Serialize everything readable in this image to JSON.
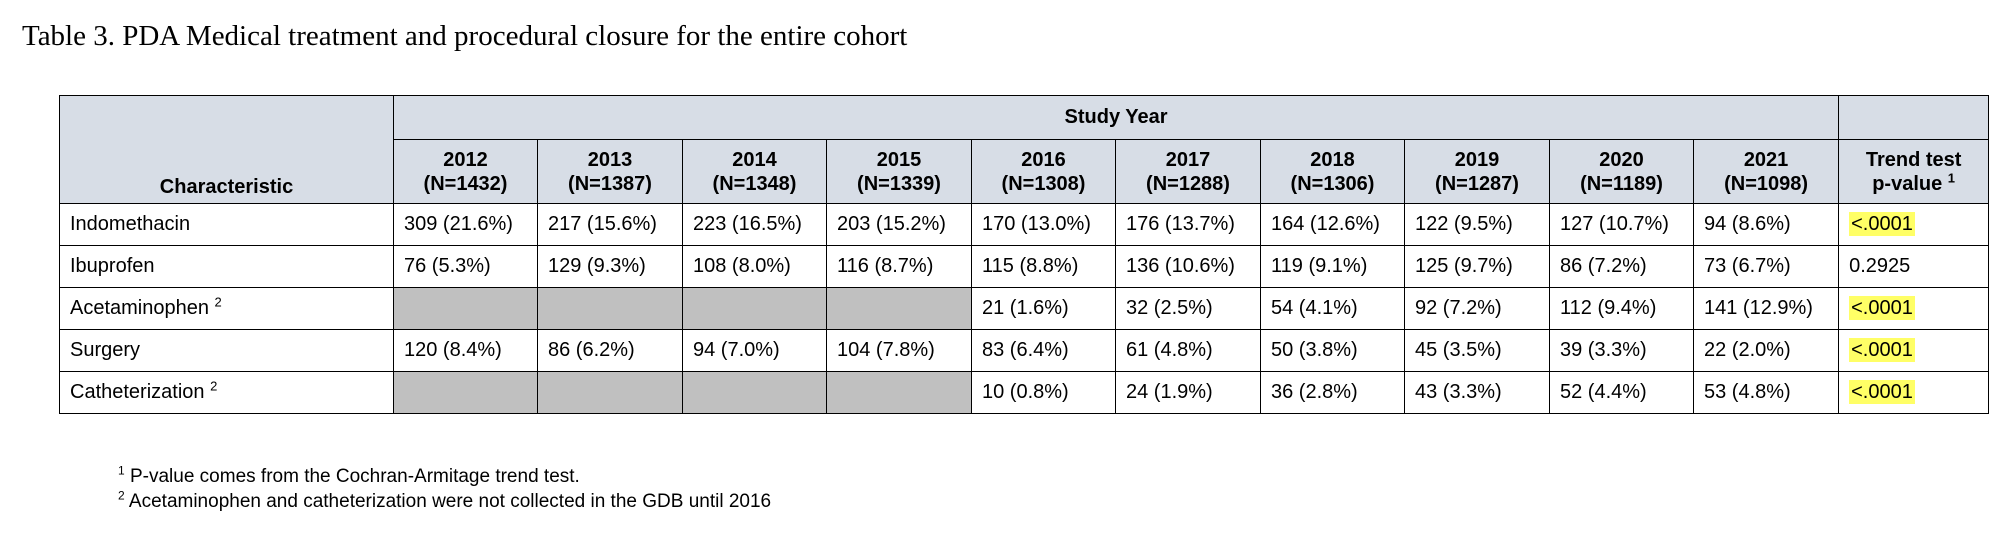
{
  "title": "Table 3. PDA Medical treatment and procedural closure for the entire cohort",
  "table": {
    "characteristic_header": "Characteristic",
    "group_header": "Study Year",
    "years": [
      {
        "year": "2012",
        "n": "(N=1432)"
      },
      {
        "year": "2013",
        "n": "(N=1387)"
      },
      {
        "year": "2014",
        "n": "(N=1348)"
      },
      {
        "year": "2015",
        "n": "(N=1339)"
      },
      {
        "year": "2016",
        "n": "(N=1308)"
      },
      {
        "year": "2017",
        "n": "(N=1288)"
      },
      {
        "year": "2018",
        "n": "(N=1306)"
      },
      {
        "year": "2019",
        "n": "(N=1287)"
      },
      {
        "year": "2020",
        "n": "(N=1189)"
      },
      {
        "year": "2021",
        "n": "(N=1098)"
      }
    ],
    "trend_header_line1": "Trend test",
    "trend_header_line2": "p-value",
    "trend_header_sup": "1",
    "rows": [
      {
        "label": "Indomethacin",
        "sup": "",
        "cells": [
          "309 (21.6%)",
          "217 (15.6%)",
          "223 (16.5%)",
          "203 (15.2%)",
          "170 (13.0%)",
          "176 (13.7%)",
          "164 (12.6%)",
          "122 (9.5%)",
          "127 (10.7%)",
          "94 (8.6%)"
        ],
        "p_value": "<.0001",
        "highlighted": true
      },
      {
        "label": "Ibuprofen",
        "sup": "",
        "cells": [
          "76 (5.3%)",
          "129 (9.3%)",
          "108 (8.0%)",
          "116 (8.7%)",
          "115 (8.8%)",
          "136 (10.6%)",
          "119 (9.1%)",
          "125 (9.7%)",
          "86 (7.2%)",
          "73 (6.7%)"
        ],
        "p_value": "0.2925",
        "highlighted": false
      },
      {
        "label": "Acetaminophen",
        "sup": "2",
        "cells": [
          "",
          "",
          "",
          "",
          "21 (1.6%)",
          "32 (2.5%)",
          "54 (4.1%)",
          "92 (7.2%)",
          "112 (9.4%)",
          "141 (12.9%)"
        ],
        "p_value": "<.0001",
        "highlighted": true
      },
      {
        "label": "Surgery",
        "sup": "",
        "cells": [
          "120 (8.4%)",
          "86 (6.2%)",
          "94 (7.0%)",
          "104 (7.8%)",
          "83 (6.4%)",
          "61 (4.8%)",
          "50 (3.8%)",
          "45 (3.5%)",
          "39 (3.3%)",
          "22 (2.0%)"
        ],
        "p_value": "<.0001",
        "highlighted": true
      },
      {
        "label": "Catheterization",
        "sup": "2",
        "cells": [
          "",
          "",
          "",
          "",
          "10 (0.8%)",
          "24 (1.9%)",
          "36 (2.8%)",
          "43 (3.3%)",
          "52 (4.4%)",
          "53 (4.8%)"
        ],
        "p_value": "<.0001",
        "highlighted": true
      }
    ]
  },
  "footnotes": [
    {
      "marker": "1",
      "text": "P-value comes from the Cochran-Armitage trend test."
    },
    {
      "marker": "2",
      "text": "Acetaminophen and catheterization were not collected in the GDB until 2016"
    }
  ],
  "colors": {
    "header_bg": "#d7dde6",
    "missing_cell_bg": "#c0c0c0",
    "highlight": "#ffff66"
  }
}
